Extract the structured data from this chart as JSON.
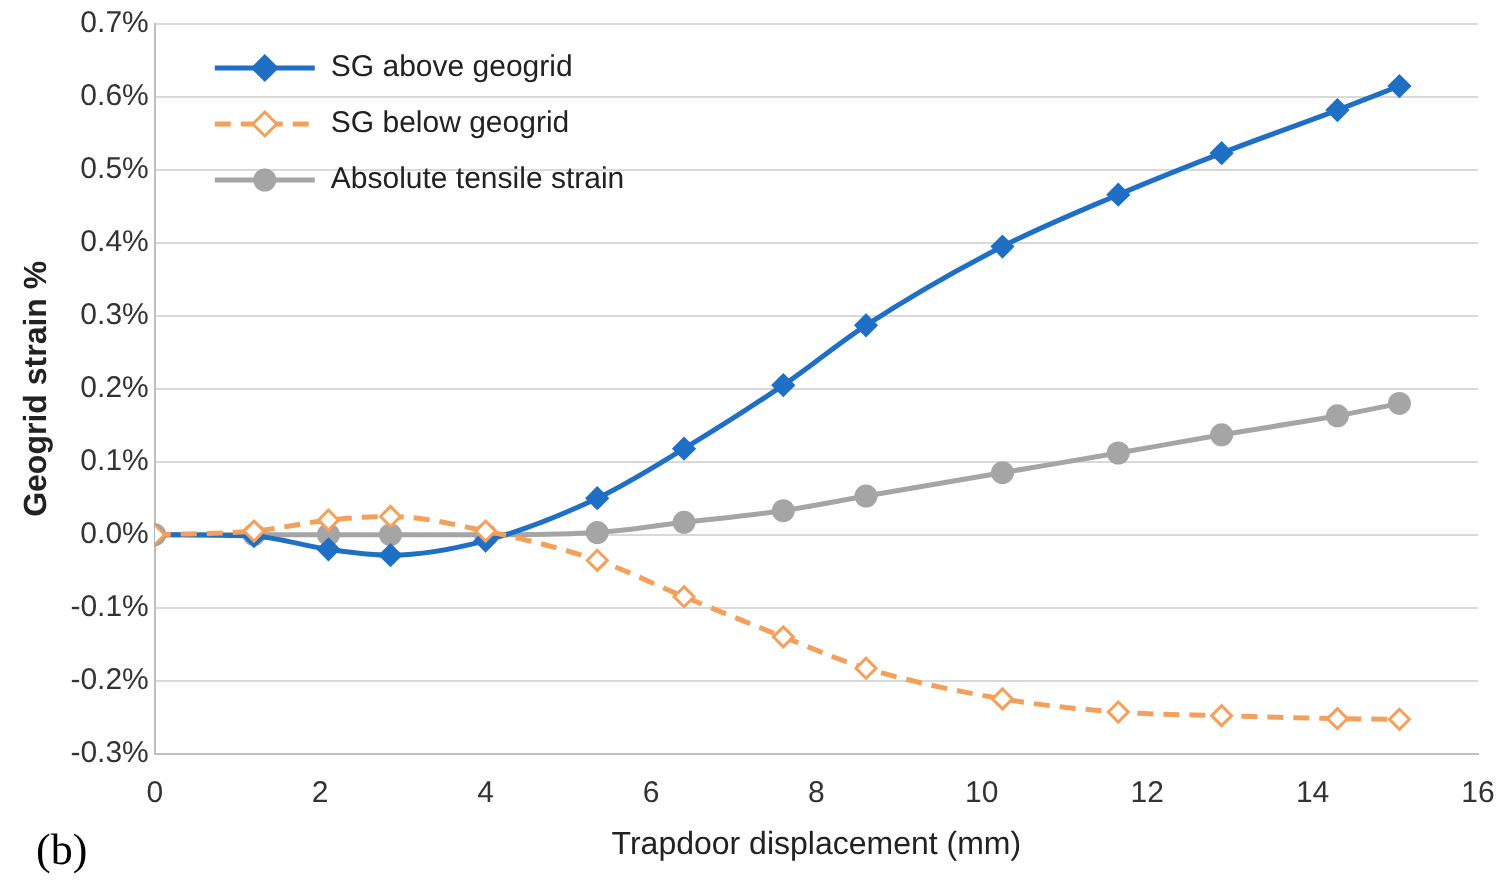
{
  "chart_data": {
    "type": "line",
    "xlabel": "Trapdoor displacement (mm)",
    "ylabel": "Geogrid strain %",
    "x": [
      0,
      1.2,
      2.1,
      2.85,
      4.0,
      5.35,
      6.4,
      7.6,
      8.6,
      10.25,
      11.65,
      12.9,
      14.3,
      15.05
    ],
    "series": [
      {
        "name": "SG above geogrid",
        "color": "#1f6fc5",
        "marker": "diamond",
        "line_style": "solid",
        "values": [
          0,
          -0.002,
          -0.02,
          -0.028,
          -0.008,
          0.05,
          0.118,
          0.205,
          0.287,
          0.395,
          0.466,
          0.523,
          0.582,
          0.615
        ]
      },
      {
        "name": "SG below geogrid",
        "color": "#f5a05a",
        "marker": "diamond",
        "line_style": "dashed",
        "values": [
          0,
          0.005,
          0.02,
          0.025,
          0.005,
          -0.035,
          -0.085,
          -0.14,
          -0.183,
          -0.225,
          -0.243,
          -0.248,
          -0.252,
          -0.253
        ]
      },
      {
        "name": "Absolute tensile strain",
        "color": "#a5a5a5",
        "marker": "circle",
        "line_style": "solid",
        "values": [
          0,
          0,
          0,
          0,
          0,
          0.003,
          0.017,
          0.033,
          0.053,
          0.085,
          0.112,
          0.137,
          0.163,
          0.18
        ]
      }
    ],
    "xlim": [
      0,
      16
    ],
    "xticks": [
      0,
      2,
      4,
      6,
      8,
      10,
      12,
      14,
      16
    ],
    "ylim": [
      -0.3,
      0.7
    ],
    "yticks": [
      {
        "value": -0.3,
        "label": "-0.3%"
      },
      {
        "value": -0.2,
        "label": "-0.2%"
      },
      {
        "value": -0.1,
        "label": "-0.1%"
      },
      {
        "value": 0,
        "label": "0.0%"
      },
      {
        "value": 0.1,
        "label": "0.1%"
      },
      {
        "value": 0.2,
        "label": "0.2%"
      },
      {
        "value": 0.3,
        "label": "0.3%"
      },
      {
        "value": 0.4,
        "label": "0.4%"
      },
      {
        "value": 0.5,
        "label": "0.5%"
      },
      {
        "value": 0.6,
        "label": "0.6%"
      },
      {
        "value": 0.7,
        "label": "0.7%"
      }
    ],
    "grid": "y",
    "legend": "top left",
    "annotations": [
      "(b)"
    ]
  }
}
